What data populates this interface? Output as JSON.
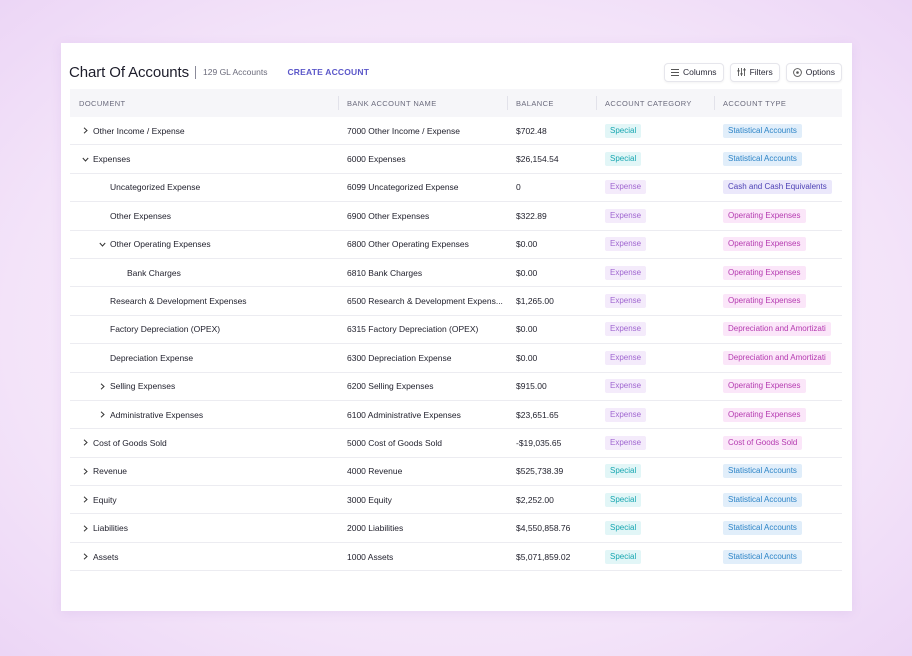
{
  "header": {
    "title": "Chart Of Accounts",
    "count": "129 GL Accounts",
    "create": "CREATE ACCOUNT",
    "buttons": {
      "columns": "Columns",
      "filters": "Filters",
      "options": "Options"
    }
  },
  "columns": [
    "DOCUMENT",
    "BANK ACCOUNT NAME",
    "BALANCE",
    "ACCOUNT CATEGORY",
    "ACCOUNT TYPE"
  ],
  "rows": [
    {
      "doc": "Other Income / Expense",
      "indent": 0,
      "chevron": "right",
      "bank": "7000 Other Income / Expense",
      "balance": "$702.48",
      "category": "Special",
      "type": "Statistical Accounts",
      "tclass": "b-stat"
    },
    {
      "doc": "Expenses",
      "indent": 0,
      "chevron": "down",
      "bank": "6000 Expenses",
      "balance": "$26,154.54",
      "category": "Special",
      "type": "Statistical Accounts",
      "tclass": "b-stat"
    },
    {
      "doc": "Uncategorized Expense",
      "indent": 1,
      "chevron": "none",
      "bank": "6099 Uncategorized Expense",
      "balance": "0",
      "category": "Expense",
      "type": "Cash and Cash Equivalents",
      "tclass": "b-cash"
    },
    {
      "doc": "Other Expenses",
      "indent": 1,
      "chevron": "none",
      "bank": "6900 Other Expenses",
      "balance": "$322.89",
      "category": "Expense",
      "type": "Operating Expenses",
      "tclass": "b-opex"
    },
    {
      "doc": "Other Operating Expenses",
      "indent": 1,
      "chevron": "down",
      "bank": "6800 Other Operating Expenses",
      "balance": "$0.00",
      "category": "Expense",
      "type": "Operating Expenses",
      "tclass": "b-opex"
    },
    {
      "doc": "Bank Charges",
      "indent": 2,
      "chevron": "none",
      "bank": "6810 Bank Charges",
      "balance": "$0.00",
      "category": "Expense",
      "type": "Operating Expenses",
      "tclass": "b-opex"
    },
    {
      "doc": "Research & Development Expenses",
      "indent": 1,
      "chevron": "none",
      "bank": "6500 Research & Development Expens...",
      "balance": "$1,265.00",
      "category": "Expense",
      "type": "Operating Expenses",
      "tclass": "b-opex"
    },
    {
      "doc": "Factory Depreciation (OPEX)",
      "indent": 1,
      "chevron": "none",
      "bank": "6315 Factory Depreciation (OPEX)",
      "balance": "$0.00",
      "category": "Expense",
      "type": "Depreciation and Amortizati",
      "tclass": "b-dep"
    },
    {
      "doc": "Depreciation Expense",
      "indent": 1,
      "chevron": "none",
      "bank": "6300 Depreciation Expense",
      "balance": "$0.00",
      "category": "Expense",
      "type": "Depreciation and Amortizati",
      "tclass": "b-dep"
    },
    {
      "doc": "Selling Expenses",
      "indent": 1,
      "chevron": "right",
      "bank": "6200 Selling Expenses",
      "balance": "$915.00",
      "category": "Expense",
      "type": "Operating Expenses",
      "tclass": "b-opex"
    },
    {
      "doc": "Administrative Expenses",
      "indent": 1,
      "chevron": "right",
      "bank": "6100 Administrative Expenses",
      "balance": "$23,651.65",
      "category": "Expense",
      "type": "Operating Expenses",
      "tclass": "b-opex"
    },
    {
      "doc": "Cost of Goods Sold",
      "indent": 0,
      "chevron": "right",
      "bank": "5000 Cost of Goods Sold",
      "balance": "-$19,035.65",
      "category": "Expense",
      "type": "Cost of Goods Sold",
      "tclass": "b-opex"
    },
    {
      "doc": "Revenue",
      "indent": 0,
      "chevron": "right",
      "bank": "4000 Revenue",
      "balance": "$525,738.39",
      "category": "Special",
      "type": "Statistical Accounts",
      "tclass": "b-stat"
    },
    {
      "doc": "Equity",
      "indent": 0,
      "chevron": "right",
      "bank": "3000 Equity",
      "balance": "$2,252.00",
      "category": "Special",
      "type": "Statistical Accounts",
      "tclass": "b-stat"
    },
    {
      "doc": "Liabilities",
      "indent": 0,
      "chevron": "right",
      "bank": "2000 Liabilities",
      "balance": "$4,550,858.76",
      "category": "Special",
      "type": "Statistical Accounts",
      "tclass": "b-stat"
    },
    {
      "doc": "Assets",
      "indent": 0,
      "chevron": "right",
      "bank": "1000 Assets",
      "balance": "$5,071,859.02",
      "category": "Special",
      "type": "Statistical Accounts",
      "tclass": "b-stat"
    }
  ],
  "icons": {
    "columns": "list-icon",
    "filters": "filter-icon",
    "options": "options-icon",
    "expand": "chevron-right-icon",
    "collapse": "chevron-down-icon"
  },
  "colors": {
    "accent": "#5b57c9",
    "special": "#16a6b0",
    "expense": "#a066d0",
    "statistical": "#2c84c7",
    "operating": "#b53ab0"
  }
}
